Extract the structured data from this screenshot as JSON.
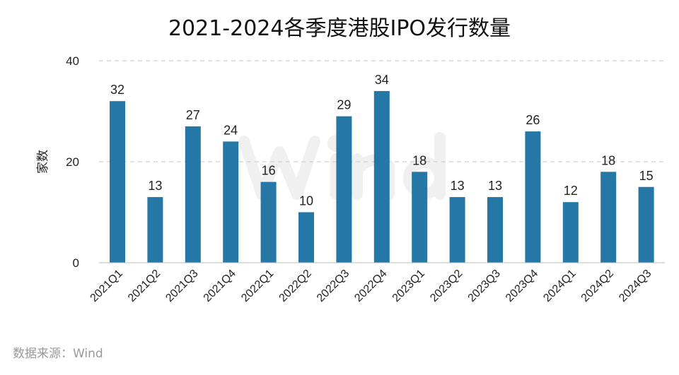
{
  "chart_data": {
    "type": "bar",
    "title": "2021-2024各季度港股IPO发行数量",
    "ylabel": "家数",
    "xlabel": "",
    "ylim": [
      0,
      40
    ],
    "yticks": [
      0,
      20,
      40
    ],
    "grid": "horizontal dashed",
    "categories": [
      "2021Q1",
      "2021Q2",
      "2021Q3",
      "2021Q4",
      "2022Q1",
      "2022Q2",
      "2022Q3",
      "2022Q4",
      "2023Q1",
      "2023Q2",
      "2023Q3",
      "2023Q4",
      "2024Q1",
      "2024Q2",
      "2024Q3"
    ],
    "values": [
      32,
      13,
      27,
      24,
      16,
      10,
      29,
      34,
      18,
      13,
      13,
      26,
      12,
      18,
      15
    ],
    "bar_color": "#2577a6",
    "source": "数据来源：Wind",
    "watermark": "Wind"
  }
}
